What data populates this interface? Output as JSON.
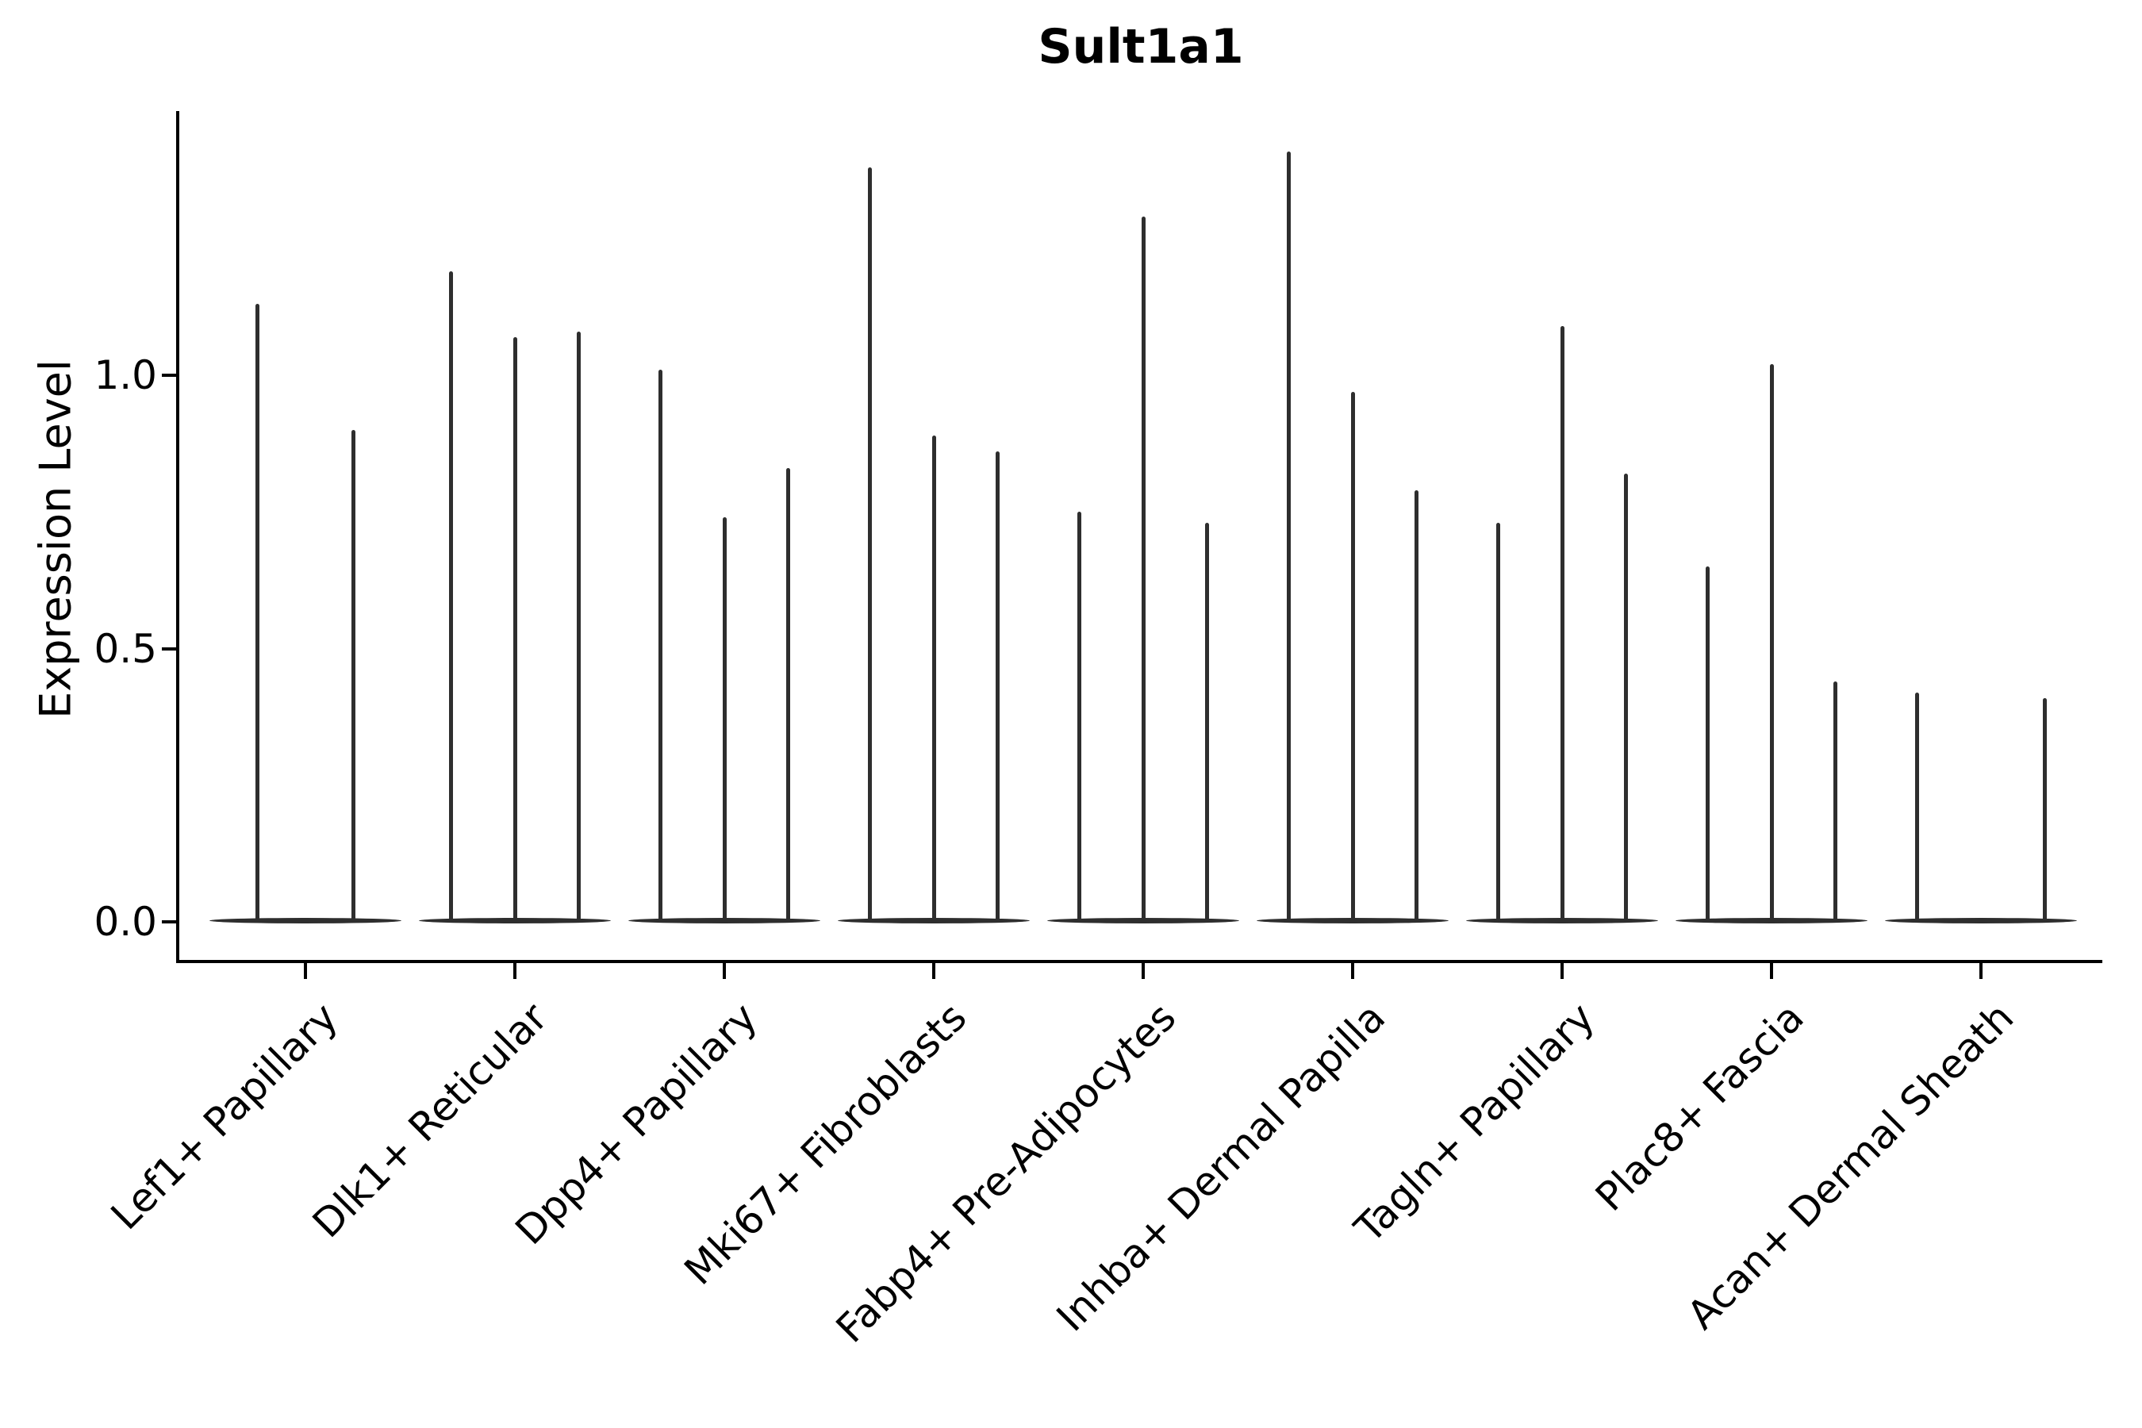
{
  "chart_data": {
    "type": "violin",
    "title": "Sult1a1",
    "ylabel": "Expression Level",
    "xlabel": "",
    "ylim": [
      0,
      1.49
    ],
    "ytick_labels": [
      "0.0",
      "0.5",
      "1.0"
    ],
    "ytick_values": [
      0.0,
      0.5,
      1.0
    ],
    "grid": false,
    "legend": "none",
    "categories": [
      "Lef1+ Papillary",
      "Dlk1+ Reticular",
      "Dpp4+ Papillary",
      "Mki67+ Fibroblasts",
      "Fabp4+ Pre-Adipocytes",
      "Inhba+ Dermal Papilla",
      "Tagln+ Papillary",
      "Plac8+ Fascia",
      "Acan+ Dermal Sheath"
    ],
    "groups": [
      {
        "label": "Lef1+ Papillary",
        "violin_max": [
          1.13,
          0.9
        ]
      },
      {
        "label": "Dlk1+ Reticular",
        "violin_max": [
          1.19,
          1.07,
          1.08
        ]
      },
      {
        "label": "Dpp4+ Papillary",
        "violin_max": [
          1.01,
          0.74,
          0.83
        ]
      },
      {
        "label": "Mki67+ Fibroblasts",
        "violin_max": [
          1.38,
          0.89,
          0.86
        ]
      },
      {
        "label": "Fabp4+ Pre-Adipocytes",
        "violin_max": [
          0.75,
          1.29,
          0.73
        ]
      },
      {
        "label": "Inhba+ Dermal Papilla",
        "violin_max": [
          1.41,
          0.97,
          0.79
        ]
      },
      {
        "label": "Tagln+ Papillary",
        "violin_max": [
          0.73,
          1.09,
          0.82
        ]
      },
      {
        "label": "Plac8+ Fascia",
        "violin_max": [
          0.65,
          1.02,
          0.44
        ]
      },
      {
        "label": "Acan+ Dermal Sheath",
        "violin_max": [
          0.42,
          0.0,
          0.41
        ]
      }
    ],
    "colors": {
      "violin": "#2e2e2e",
      "axis": "#000000",
      "background": "#ffffff"
    }
  }
}
